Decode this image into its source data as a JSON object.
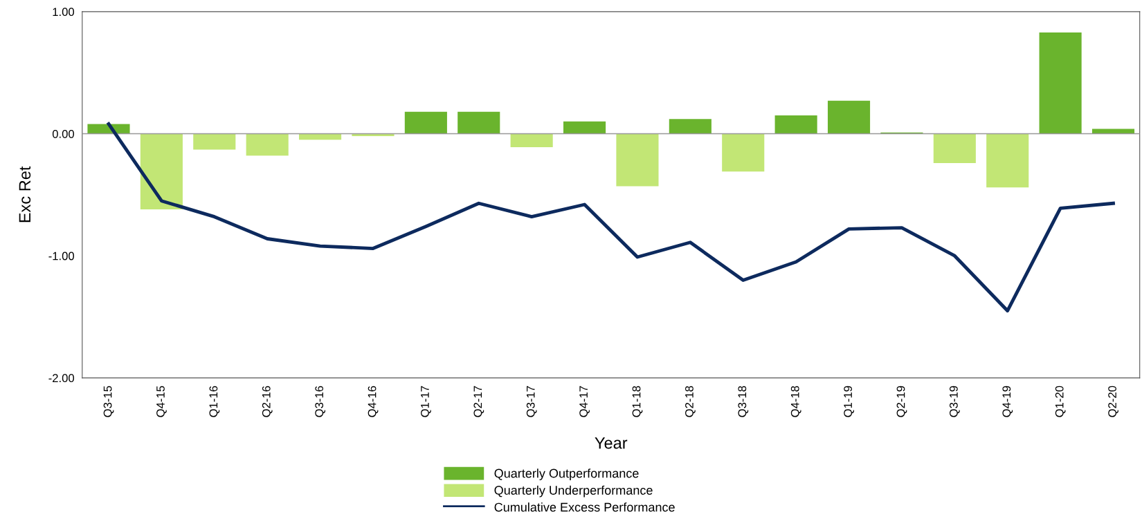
{
  "chart_data": {
    "type": "bar",
    "xlabel": "Year",
    "ylabel": "Exc Ret",
    "categories": [
      "Q3-15",
      "Q4-15",
      "Q1-16",
      "Q2-16",
      "Q3-16",
      "Q4-16",
      "Q1-17",
      "Q2-17",
      "Q3-17",
      "Q4-17",
      "Q1-18",
      "Q2-18",
      "Q3-18",
      "Q4-18",
      "Q1-19",
      "Q2-19",
      "Q3-19",
      "Q4-19",
      "Q1-20",
      "Q2-20"
    ],
    "series": [
      {
        "name": "Quarterly Outperformance",
        "color": "#6ab42d",
        "values": [
          0.08,
          null,
          null,
          null,
          null,
          null,
          0.18,
          0.18,
          null,
          0.1,
          null,
          0.12,
          null,
          0.15,
          0.27,
          0.01,
          null,
          null,
          0.83,
          0.04
        ]
      },
      {
        "name": "Quarterly Underperformance",
        "color": "#c2e675",
        "values": [
          null,
          -0.62,
          -0.13,
          -0.18,
          -0.05,
          -0.02,
          null,
          null,
          -0.11,
          null,
          -0.43,
          null,
          -0.31,
          null,
          null,
          null,
          -0.24,
          -0.44,
          null,
          null
        ]
      },
      {
        "name": "Cumulative Excess Performance",
        "type": "line",
        "color": "#0d2a5e",
        "values": [
          0.08,
          -0.55,
          -0.68,
          -0.86,
          -0.92,
          -0.94,
          -0.76,
          -0.57,
          -0.68,
          -0.58,
          -1.01,
          -0.89,
          -1.2,
          -1.05,
          -0.78,
          -0.77,
          -1.0,
          -1.45,
          -0.61,
          -0.57
        ]
      }
    ],
    "ylim": [
      -2,
      1
    ],
    "yticks": [
      {
        "value": -2,
        "label": "-2.00"
      },
      {
        "value": -1,
        "label": "-1.00"
      },
      {
        "value": 0,
        "label": "0.00"
      },
      {
        "value": 1,
        "label": "1.00"
      }
    ],
    "ref_lines": [
      {
        "axis": "y",
        "value": 0,
        "color": "#999999"
      }
    ],
    "grid": false,
    "legend": "bottom",
    "marker": "none",
    "line_style": "solid"
  }
}
